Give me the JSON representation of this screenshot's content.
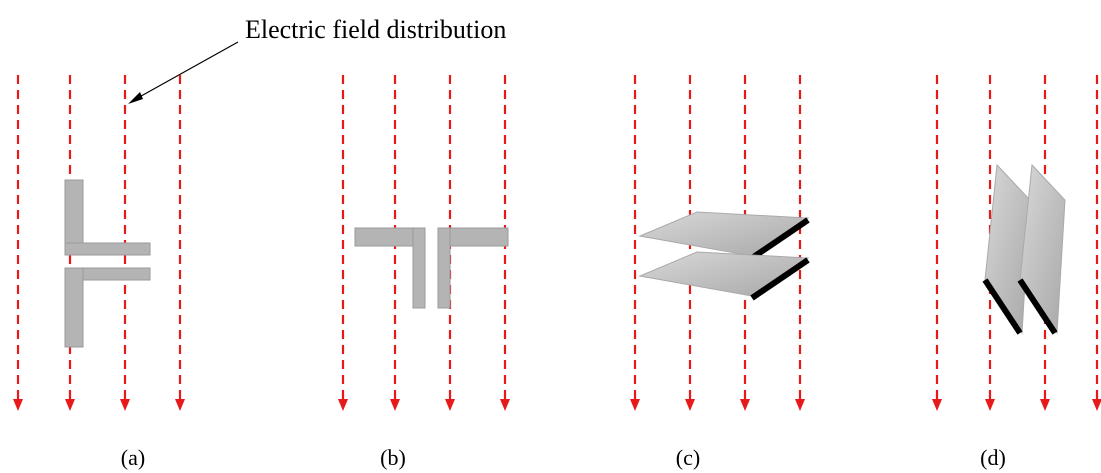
{
  "annotation": "Electric field distribution",
  "panels": [
    {
      "label": "(a)"
    },
    {
      "label": "(b)"
    },
    {
      "label": "(c)"
    },
    {
      "label": "(d)"
    }
  ]
}
